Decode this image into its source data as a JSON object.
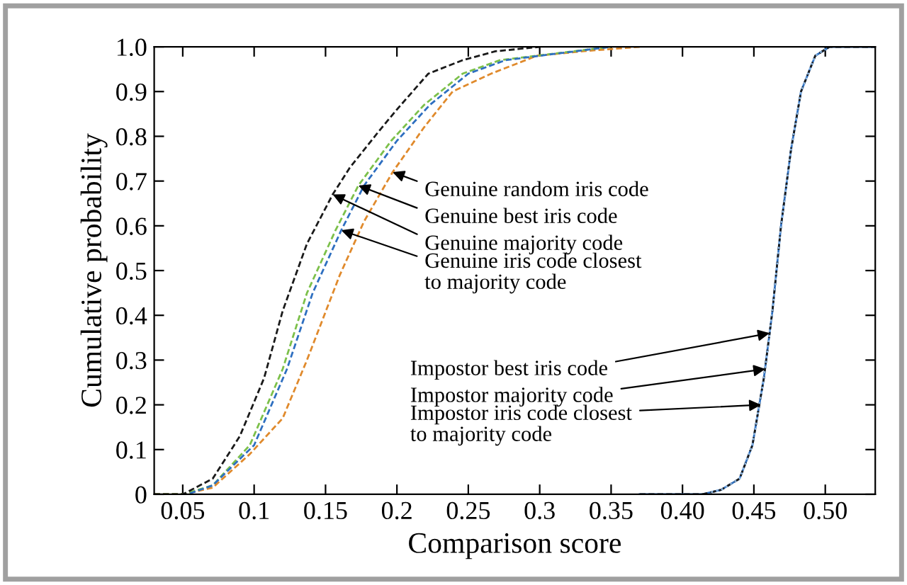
{
  "chart_data": {
    "type": "line",
    "xlabel": "Comparison score",
    "ylabel": "Cumulative probability",
    "xlim": [
      0.03,
      0.535
    ],
    "ylim": [
      0,
      1.0
    ],
    "xticks": [
      {
        "value": 0.05,
        "label": "0.05"
      },
      {
        "value": 0.1,
        "label": "0.1"
      },
      {
        "value": 0.15,
        "label": "0.15"
      },
      {
        "value": 0.2,
        "label": "0.2"
      },
      {
        "value": 0.25,
        "label": "0.25"
      },
      {
        "value": 0.3,
        "label": "0.3"
      },
      {
        "value": 0.35,
        "label": "0.35"
      },
      {
        "value": 0.4,
        "label": "0.40"
      },
      {
        "value": 0.45,
        "label": "0.45"
      },
      {
        "value": 0.5,
        "label": "0.50"
      }
    ],
    "yticks": [
      {
        "value": 0,
        "label": "0"
      },
      0.1,
      0.2,
      0.3,
      0.4,
      0.5,
      0.6,
      0.7,
      0.8,
      0.9,
      {
        "value": 1.0,
        "label": "1.0"
      }
    ],
    "grid": false,
    "legend": false,
    "marker": "none",
    "series": [
      {
        "color": "#e08a2c",
        "line_style": "dashed",
        "x": [
          0.03,
          0.05,
          0.071,
          0.097,
          0.12,
          0.137,
          0.16,
          0.177,
          0.197,
          0.219,
          0.239,
          0.266,
          0.298,
          0.33,
          0.37
        ],
        "values": [
          0,
          0,
          0.015,
          0.09,
          0.17,
          0.3,
          0.49,
          0.61,
          0.72,
          0.82,
          0.9,
          0.94,
          0.98,
          0.99,
          1.0
        ]
      },
      {
        "color": "#7cc04a",
        "line_style": "dashed",
        "x": [
          0.03,
          0.05,
          0.071,
          0.097,
          0.12,
          0.137,
          0.157,
          0.173,
          0.196,
          0.219,
          0.246,
          0.272,
          0.298,
          0.35
        ],
        "values": [
          0,
          0,
          0.02,
          0.11,
          0.28,
          0.45,
          0.59,
          0.69,
          0.79,
          0.87,
          0.94,
          0.97,
          0.98,
          1.0
        ]
      },
      {
        "color": "#1a1a1a",
        "line_style": "dashed",
        "x": [
          0.03,
          0.05,
          0.071,
          0.09,
          0.107,
          0.12,
          0.137,
          0.155,
          0.167,
          0.187,
          0.2,
          0.222,
          0.246,
          0.269,
          0.285,
          0.3
        ],
        "values": [
          0,
          0,
          0.035,
          0.13,
          0.26,
          0.41,
          0.56,
          0.67,
          0.73,
          0.81,
          0.86,
          0.94,
          0.97,
          0.99,
          0.995,
          1.0
        ]
      },
      {
        "color": "#2e6fc0",
        "line_style": "dashed",
        "x": [
          0.055,
          0.071,
          0.1,
          0.123,
          0.141,
          0.161,
          0.177,
          0.2,
          0.223,
          0.25,
          0.276,
          0.3,
          0.35
        ],
        "values": [
          0.002,
          0.02,
          0.11,
          0.28,
          0.45,
          0.59,
          0.69,
          0.79,
          0.87,
          0.94,
          0.97,
          0.98,
          1.0
        ]
      },
      {
        "color": "#2e6fc0",
        "line_style": "solid",
        "x": [
          0.37,
          0.414,
          0.427,
          0.44,
          0.449,
          0.457,
          0.463,
          0.469,
          0.476,
          0.483,
          0.493,
          0.503,
          0.535
        ],
        "values": [
          0,
          0,
          0.01,
          0.035,
          0.11,
          0.26,
          0.41,
          0.6,
          0.77,
          0.9,
          0.98,
          1.0,
          1.0
        ]
      },
      {
        "color": "#1a1a1a",
        "line_style": "dashed",
        "x": [
          0.37,
          0.414,
          0.427,
          0.44,
          0.449,
          0.457,
          0.463,
          0.469,
          0.476,
          0.483,
          0.493,
          0.503,
          0.535
        ],
        "values": [
          0,
          0,
          0.01,
          0.035,
          0.11,
          0.26,
          0.41,
          0.6,
          0.77,
          0.9,
          0.98,
          1.0,
          1.0
        ]
      },
      {
        "color": "#8ab4e0",
        "line_style": "dotted",
        "x": [
          0.42,
          0.427,
          0.44,
          0.449,
          0.457,
          0.463,
          0.469,
          0.476,
          0.483,
          0.493,
          0.5
        ],
        "values": [
          0.005,
          0.01,
          0.035,
          0.11,
          0.26,
          0.41,
          0.6,
          0.77,
          0.9,
          0.98,
          0.995
        ]
      }
    ],
    "annotations": [
      {
        "text": "Genuine random iris code",
        "x": 0.197,
        "y": 0.72
      },
      {
        "text": "Genuine best iris code",
        "x": 0.173,
        "y": 0.69
      },
      {
        "text": "Genuine majority code",
        "x": 0.155,
        "y": 0.67
      },
      {
        "text": "Genuine iris code closest\nto majority code",
        "x": 0.161,
        "y": 0.59
      },
      {
        "text": "Impostor best iris code",
        "x": 0.461,
        "y": 0.36
      },
      {
        "text": "Impostor majority code",
        "x": 0.458,
        "y": 0.28
      },
      {
        "text": "Impostor iris code closest\nto majority code",
        "x": 0.455,
        "y": 0.2
      }
    ]
  }
}
